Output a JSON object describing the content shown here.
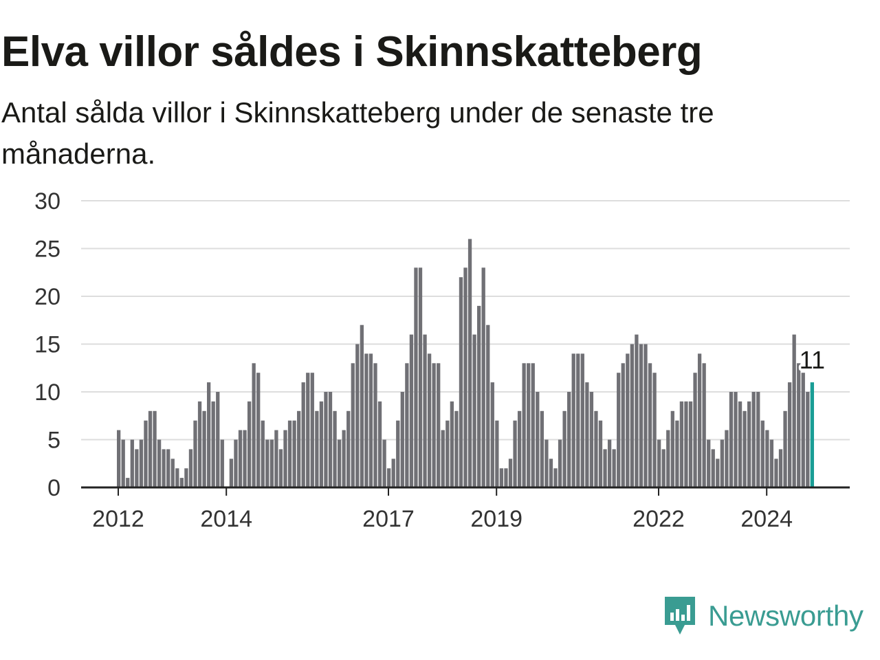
{
  "title": "Elva villor såldes i Skinnskatteberg",
  "subtitle": "Antal sålda villor i Skinnskatteberg under de senaste tre månaderna.",
  "brand": {
    "name": "Newsworthy",
    "color": "#3a9c92",
    "logo_icon": "bar-chart-speech-bubble-icon"
  },
  "colors": {
    "bars": "#707075",
    "highlight": "#1a9e96",
    "grid": "#dddddd",
    "axis": "#222222"
  },
  "chart_data": {
    "type": "bar",
    "x_start": "2012-01",
    "x_interval": "month",
    "values": [
      6,
      5,
      1,
      5,
      4,
      5,
      7,
      8,
      8,
      5,
      4,
      4,
      3,
      2,
      1,
      2,
      4,
      7,
      9,
      8,
      11,
      9,
      10,
      5,
      0,
      3,
      5,
      6,
      6,
      9,
      13,
      12,
      7,
      5,
      5,
      6,
      4,
      6,
      7,
      7,
      8,
      11,
      12,
      12,
      8,
      9,
      10,
      10,
      8,
      5,
      6,
      8,
      13,
      15,
      17,
      14,
      14,
      13,
      9,
      5,
      2,
      3,
      7,
      10,
      13,
      16,
      23,
      23,
      16,
      14,
      13,
      13,
      6,
      7,
      9,
      8,
      22,
      23,
      26,
      16,
      19,
      23,
      17,
      11,
      7,
      2,
      2,
      3,
      7,
      8,
      13,
      13,
      13,
      10,
      8,
      5,
      3,
      2,
      5,
      8,
      10,
      14,
      14,
      14,
      11,
      10,
      8,
      7,
      4,
      5,
      4,
      12,
      13,
      14,
      15,
      16,
      15,
      15,
      13,
      12,
      5,
      4,
      6,
      8,
      7,
      9,
      9,
      9,
      12,
      14,
      13,
      5,
      4,
      3,
      5,
      6,
      10,
      10,
      9,
      8,
      9,
      10,
      10,
      7,
      6,
      5,
      3,
      4,
      8,
      11,
      16,
      13,
      12,
      10,
      11
    ],
    "highlight_last": true,
    "data_label": "11",
    "x_ticks": [
      "2012",
      "2014",
      "2017",
      "2019",
      "2022",
      "2024"
    ],
    "x_tick_dates": [
      "2012-01",
      "2014-01",
      "2017-01",
      "2019-01",
      "2022-01",
      "2024-01"
    ],
    "y_ticks": [
      "0",
      "5",
      "10",
      "15",
      "20",
      "25",
      "30"
    ],
    "ylim": [
      0,
      30
    ],
    "grid": true,
    "xlabel": "",
    "ylabel": ""
  }
}
